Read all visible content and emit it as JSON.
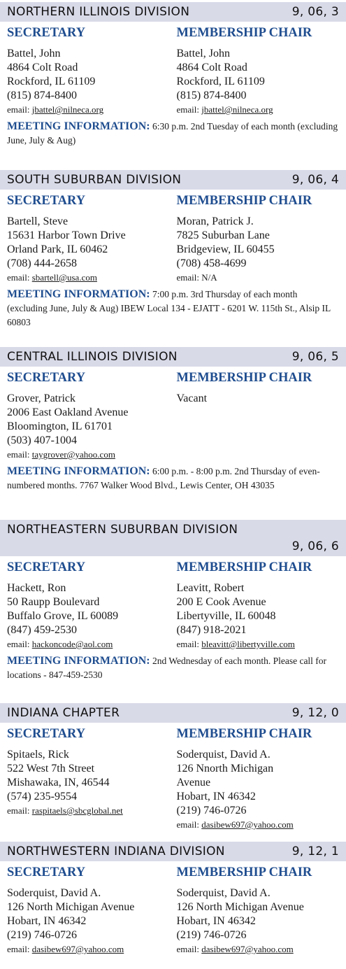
{
  "divisions": [
    {
      "name": "NORTHERN ILLINOIS DIVISION",
      "code": "9, 06, 3",
      "secretary": {
        "heading": "SECRETARY",
        "lines": [
          "Battel,  John",
          "4864 Colt Road",
          "Rockford, IL 61109",
          "(815) 874-8400"
        ],
        "email_label": "email:",
        "email": "jbattel@nilneca.org"
      },
      "chair": {
        "heading": "MEMBERSHIP CHAIR",
        "lines": [
          "Battel,  John",
          "4864 Colt Road",
          "Rockford, IL 61109",
          "(815) 874-8400"
        ],
        "email_label": "email:",
        "email": "jbattel@nilneca.org"
      },
      "meeting": {
        "label": "MEETING INFORMATION:",
        "text": "6:30 p.m. 2nd Tuesday of each month (excluding June, July & Aug)"
      }
    },
    {
      "name": "SOUTH SUBURBAN DIVISION",
      "code": "9, 06, 4",
      "secretary": {
        "heading": "SECRETARY",
        "lines": [
          "Bartell, Steve",
          "15631 Harbor Town Drive",
          "Orland Park, IL 60462",
          "(708) 444-2658"
        ],
        "email_label": "email:",
        "email": "sbartell@usa.com"
      },
      "chair": {
        "heading": "MEMBERSHIP CHAIR",
        "lines": [
          "Moran, Patrick J.",
          "7825 Suburban Lane",
          "Bridgeview, IL 60455",
          "(708) 458-4699"
        ],
        "email_label": "email:",
        "email": "N/A"
      },
      "meeting": {
        "label": "MEETING INFORMATION:",
        "text": "7:00 p.m. 3rd Thursday of each month (excluding June, July & Aug) IBEW Local 134 - EJATT - 6201 W. 115th St., Alsip IL 60803"
      }
    },
    {
      "name": "CENTRAL ILLINOIS DIVISION",
      "code": "9, 06, 5",
      "secretary": {
        "heading": "SECRETARY",
        "lines": [
          "Grover, Patrick",
          "2006 East Oakland Avenue",
          "Bloomington, IL 61701",
          "(503) 407-1004"
        ],
        "email_label": "email:",
        "email": "taygrover@yahoo.com"
      },
      "chair": {
        "heading": "MEMBERSHIP CHAIR",
        "lines": [
          "Vacant"
        ]
      },
      "meeting": {
        "label": "MEETING INFORMATION:",
        "text": "6:00 p.m. - 8:00 p.m. 2nd Thursday of even-numbered months. 7767 Walker Wood Blvd., Lewis Center, OH 43035"
      }
    },
    {
      "name": "NORTHEASTERN SUBURBAN DIVISION",
      "code": "9, 06, 6",
      "secretary": {
        "heading": "SECRETARY",
        "lines": [
          "Hackett, Ron",
          "50 Raupp Boulevard",
          "Buffalo Grove, IL 60089",
          "(847) 459-2530"
        ],
        "email_label": "email:",
        "email": "hackoncode@aol.com"
      },
      "chair": {
        "heading": "MEMBERSHIP CHAIR",
        "lines": [
          "Leavitt, Robert",
          "200 E Cook Avenue",
          "Libertyville, IL 60048",
          "(847) 918-2021"
        ],
        "email_label": "email:",
        "email": "bleavitt@libertyville.com"
      },
      "meeting": {
        "label": "MEETING INFORMATION:",
        "text": "2nd Wednesday of each month. Please call for locations - 847-459-2530"
      }
    },
    {
      "name": "INDIANA CHAPTER",
      "code": "9, 12, 0",
      "secretary": {
        "heading": "SECRETARY",
        "lines": [
          "Spitaels, Rick",
          "522 West 7th Street",
          "Mishawaka, IN, 46544",
          "(574) 235-9554"
        ],
        "email_label": "email:",
        "email": "raspitaels@sbcglobal.net"
      },
      "chair": {
        "heading": "MEMBERSHIP CHAIR",
        "lines": [
          "Soderquist,  David A.",
          "126 Nnorth Michigan",
          "Avenue",
          "Hobart, IN 46342",
          "(219) 746-0726"
        ],
        "email_label": "email:",
        "email": "dasibew697@yahoo.com"
      }
    },
    {
      "name": "NORTHWESTERN INDIANA DIVISION",
      "code": "9, 12, 1",
      "secretary": {
        "heading": "SECRETARY",
        "lines": [
          "Soderquist, David A.",
          "126 North Michigan Avenue",
          "Hobart, IN 46342",
          "(219) 746-0726"
        ],
        "email_label": "email:",
        "email": "dasibew697@yahoo.com"
      },
      "chair": {
        "heading": "MEMBERSHIP CHAIR",
        "lines": [
          "Soderquist, David A.",
          "126 North Michigan Avenue",
          "Hobart, IN 46342",
          "(219) 746-0726"
        ],
        "email_label": "email:",
        "email": "dasibew697@yahoo.com"
      }
    }
  ]
}
